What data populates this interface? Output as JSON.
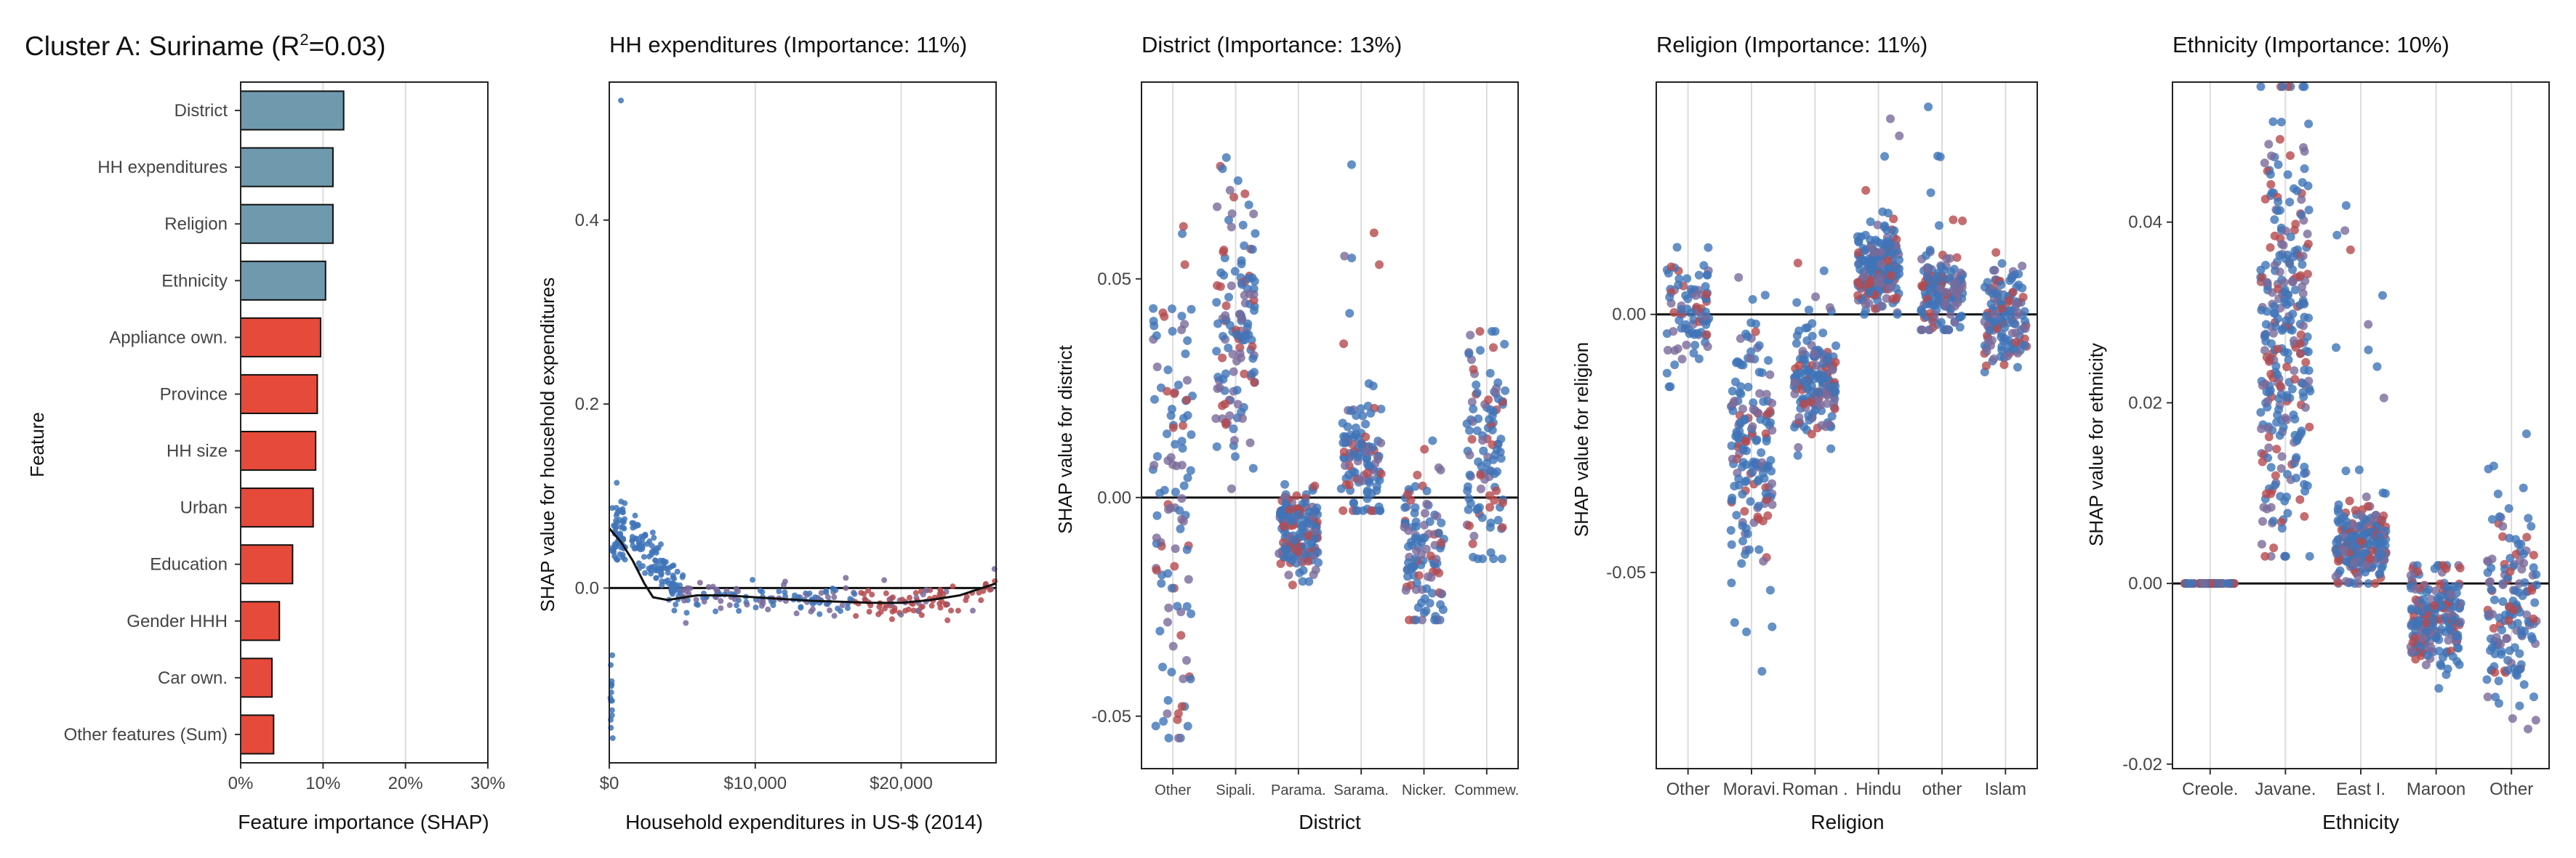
{
  "page_title": "Cluster A: Suriname (R",
  "page_title_sup": "2",
  "page_title_tail": "=0.03)",
  "colors": {
    "feature_blue": "#6f9aae",
    "feature_red": "#e64a3a",
    "point_blue": "#3f74b8",
    "point_red": "#b54a4e",
    "point_mix": "#7a6a9a",
    "grid": "#dcdcdc"
  },
  "chart_data": [
    {
      "type": "bar",
      "orientation": "horizontal",
      "title": "",
      "xlabel": "Feature importance (SHAP)",
      "ylabel": "Feature",
      "xlim": [
        0,
        30
      ],
      "xticks": [
        "0%",
        "10%",
        "20%",
        "30%"
      ],
      "categories": [
        "District",
        "HH expenditures",
        "Religion",
        "Ethnicity",
        "Appliance own.",
        "Province",
        "HH size",
        "Urban",
        "Education",
        "Gender HHH",
        "Car own.",
        "Other features (Sum)"
      ],
      "values": [
        12.5,
        11.2,
        11.2,
        10.3,
        9.7,
        9.3,
        9.1,
        8.8,
        6.3,
        4.7,
        3.8,
        4.0
      ],
      "bar_colors": [
        "blue",
        "blue",
        "blue",
        "blue",
        "red",
        "red",
        "red",
        "red",
        "red",
        "red",
        "red",
        "red"
      ]
    },
    {
      "type": "scatter",
      "title": "HH expenditures (Importance: 11%)",
      "xlabel": "Household expenditures in US-$ (2014)",
      "ylabel": "SHAP value for household expenditures",
      "xlim": [
        0,
        26500
      ],
      "ylim": [
        -0.19,
        0.55
      ],
      "xticks": [
        {
          "v": 0,
          "label": "$0"
        },
        {
          "v": 10000,
          "label": "$10,000"
        },
        {
          "v": 20000,
          "label": "$20,000"
        }
      ],
      "yticks": [
        {
          "v": 0.0,
          "label": "0.0"
        },
        {
          "v": 0.2,
          "label": "0.2"
        },
        {
          "v": 0.4,
          "label": "0.4"
        }
      ],
      "trend": [
        [
          0,
          0.065
        ],
        [
          800,
          0.05
        ],
        [
          1600,
          0.03
        ],
        [
          2400,
          0.005
        ],
        [
          3000,
          -0.01
        ],
        [
          4000,
          -0.013
        ],
        [
          6000,
          -0.008
        ],
        [
          8000,
          -0.008
        ],
        [
          10000,
          -0.01
        ],
        [
          12000,
          -0.012
        ],
        [
          14000,
          -0.014
        ],
        [
          16000,
          -0.015
        ],
        [
          18000,
          -0.016
        ],
        [
          20000,
          -0.016
        ],
        [
          22000,
          -0.013
        ],
        [
          24000,
          -0.008
        ],
        [
          26500,
          0.005
        ]
      ]
    },
    {
      "type": "scatter",
      "title": "District (Importance: 13%)",
      "xlabel": "District",
      "ylabel": "SHAP value for district",
      "ylim": [
        -0.062,
        0.095
      ],
      "yticks": [
        {
          "v": -0.05,
          "label": "-0.05"
        },
        {
          "v": 0.0,
          "label": "0.00"
        },
        {
          "v": 0.05,
          "label": "0.05"
        }
      ],
      "categories": [
        "Other",
        "Sipali.",
        "Parama.",
        "Sarama.",
        "Nicker.",
        "Commew."
      ],
      "groups": [
        {
          "center": 0.0,
          "spread": 0.028,
          "min": -0.055,
          "max": 0.062,
          "n": 110
        },
        {
          "center": 0.037,
          "spread": 0.016,
          "min": 0.002,
          "max": 0.09,
          "n": 130
        },
        {
          "center": -0.008,
          "spread": 0.005,
          "min": -0.02,
          "max": 0.003,
          "n": 170
        },
        {
          "center": 0.008,
          "spread": 0.008,
          "min": -0.003,
          "max": 0.086,
          "n": 120
        },
        {
          "center": -0.012,
          "spread": 0.01,
          "min": -0.028,
          "max": 0.013,
          "n": 110
        },
        {
          "center": 0.012,
          "spread": 0.012,
          "min": -0.014,
          "max": 0.038,
          "n": 110
        }
      ]
    },
    {
      "type": "scatter",
      "title": "Religion (Importance: 11%)",
      "xlabel": "Religion",
      "ylabel": "SHAP value for religion",
      "ylim": [
        -0.088,
        0.045
      ],
      "yticks": [
        {
          "v": -0.05,
          "label": "-0.05"
        },
        {
          "v": 0.0,
          "label": "0.00"
        }
      ],
      "categories": [
        "Other",
        "Moravi.",
        "Roman .",
        "Hindu",
        "other",
        "Islam"
      ],
      "groups": [
        {
          "center": 0.0,
          "spread": 0.005,
          "min": -0.014,
          "max": 0.013,
          "n": 90
        },
        {
          "center": -0.025,
          "spread": 0.011,
          "min": -0.081,
          "max": 0.013,
          "n": 170
        },
        {
          "center": -0.012,
          "spread": 0.006,
          "min": -0.028,
          "max": 0.011,
          "n": 170
        },
        {
          "center": 0.008,
          "spread": 0.004,
          "min": 0.0,
          "max": 0.04,
          "n": 200
        },
        {
          "center": 0.004,
          "spread": 0.004,
          "min": -0.003,
          "max": 0.044,
          "n": 160
        },
        {
          "center": 0.0,
          "spread": 0.005,
          "min": -0.012,
          "max": 0.012,
          "n": 140
        }
      ]
    },
    {
      "type": "scatter",
      "title": "Ethnicity (Importance: 10%)",
      "xlabel": "Ethnicity",
      "ylabel": "SHAP value for ethnicity",
      "ylim": [
        -0.0205,
        0.0555
      ],
      "yticks": [
        {
          "v": -0.02,
          "label": "-0.02"
        },
        {
          "v": 0.0,
          "label": "0.00"
        },
        {
          "v": 0.02,
          "label": "0.02"
        },
        {
          "v": 0.04,
          "label": "0.04"
        }
      ],
      "categories": [
        "Creole.",
        "Javane.",
        "East I.",
        "Maroon",
        "Other"
      ],
      "groups": [
        {
          "center": 0.0,
          "spread": 0.0,
          "min": 0.0,
          "max": 0.0,
          "n": 60
        },
        {
          "center": 0.028,
          "spread": 0.012,
          "min": 0.003,
          "max": 0.055,
          "n": 300
        },
        {
          "center": 0.004,
          "spread": 0.002,
          "min": 0.0,
          "max": 0.043,
          "n": 220
        },
        {
          "center": -0.004,
          "spread": 0.003,
          "min": -0.012,
          "max": 0.002,
          "n": 220
        },
        {
          "center": -0.003,
          "spread": 0.006,
          "min": -0.018,
          "max": 0.017,
          "n": 150
        }
      ]
    }
  ]
}
